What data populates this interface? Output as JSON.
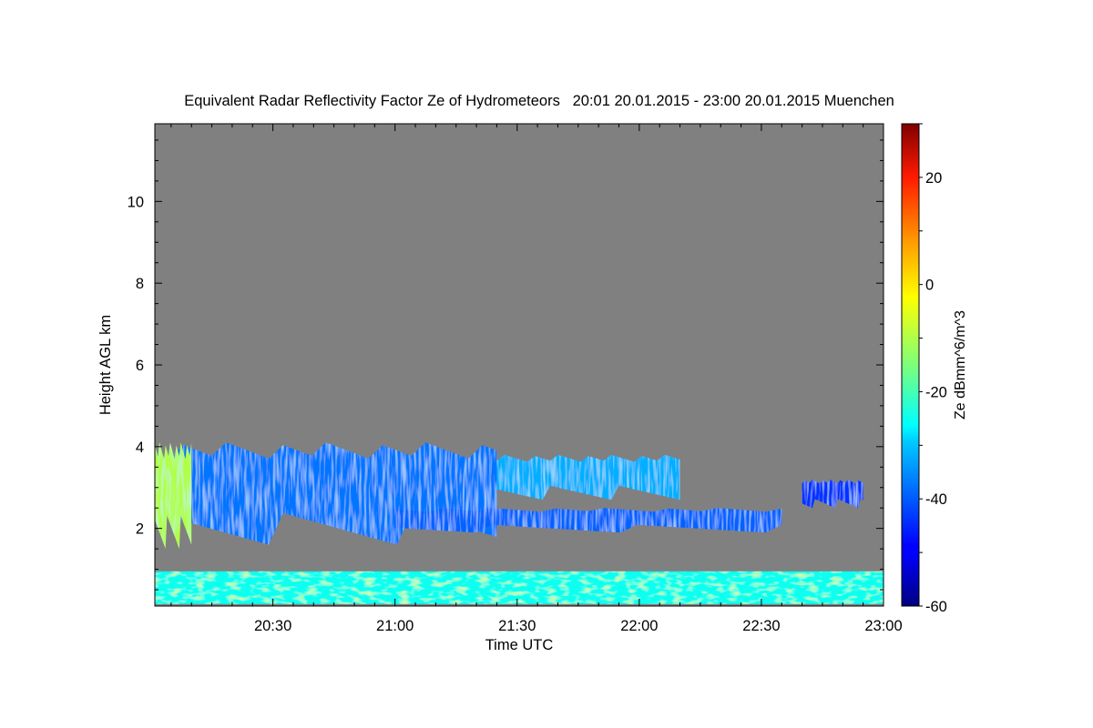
{
  "chart_data": {
    "type": "heatmap",
    "title": "Equivalent Radar Reflectivity Factor Ze of Hydrometeors   20:01 20.01.2015 - 23:00 20.01.2015 Muenchen",
    "xlabel": "Time UTC",
    "ylabel": "Height AGL km",
    "xlim": [
      "20:01",
      "23:00"
    ],
    "x_ticks": [
      "20:30",
      "21:00",
      "21:30",
      "22:00",
      "22:30",
      "23:00"
    ],
    "ylim": [
      0.1,
      11.9
    ],
    "y_ticks": [
      2,
      4,
      6,
      8,
      10
    ],
    "background_color": "#808080",
    "colorbar": {
      "label": "Ze dBmm^6/m^3",
      "range": [
        -60,
        30
      ],
      "ticks": [
        20,
        0,
        -20,
        -40,
        -60
      ],
      "colormap": "jet"
    },
    "echo_regions": [
      {
        "region": "low-level band",
        "t_start": "20:01",
        "t_end": "23:00",
        "h_bottom": 0.15,
        "h_top": 0.95,
        "ze_typical": -25
      },
      {
        "region": "cloud layer A",
        "t_start": "20:01",
        "t_end": "21:25",
        "h_bottom": 1.6,
        "h_top": 4.1,
        "ze_typical": -38
      },
      {
        "region": "intense core",
        "t_start": "20:01",
        "t_end": "20:10",
        "h_bottom": 1.5,
        "h_top": 4.1,
        "ze_typical": -10
      },
      {
        "region": "cloud layer B",
        "t_start": "21:25",
        "t_end": "22:10",
        "h_bottom": 2.7,
        "h_top": 3.8,
        "ze_typical": -32
      },
      {
        "region": "lower layer",
        "t_start": "21:00",
        "t_end": "22:35",
        "h_bottom": 1.9,
        "h_top": 2.5,
        "ze_typical": -40
      },
      {
        "region": "isolated echo",
        "t_start": "22:40",
        "t_end": "22:55",
        "h_bottom": 2.5,
        "h_top": 3.2,
        "ze_typical": -45
      }
    ]
  }
}
